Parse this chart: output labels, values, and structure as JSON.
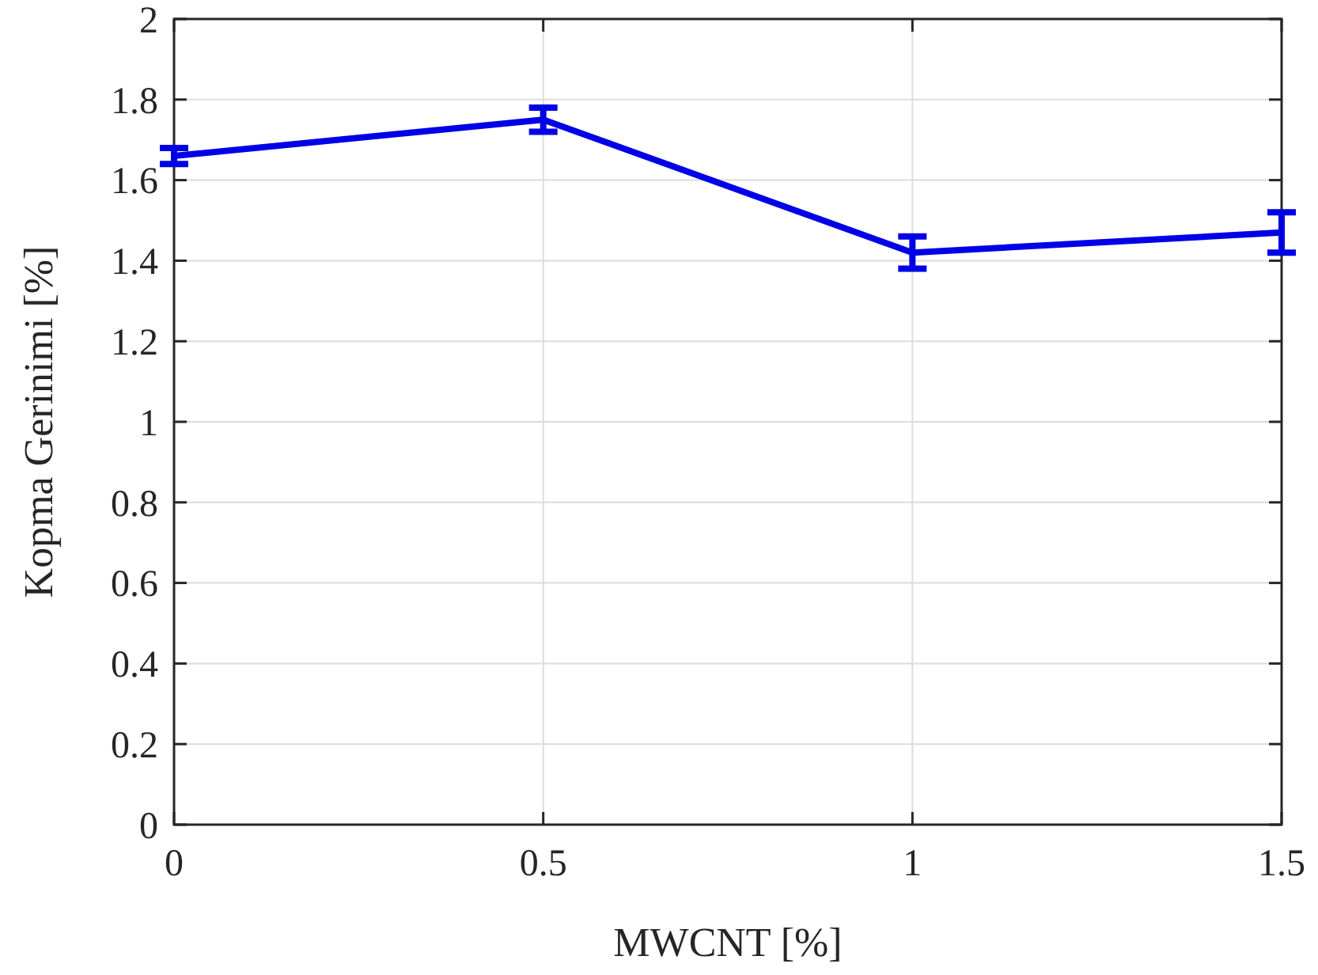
{
  "chart_data": {
    "type": "line",
    "xlabel": "MWCNT [%]",
    "ylabel": "Kopma Gerinimi [%]",
    "x": [
      0,
      0.5,
      1,
      1.5
    ],
    "series": [
      {
        "color": "#0000e6",
        "values": [
          1.66,
          1.75,
          1.42,
          1.47
        ],
        "errors": [
          0.02,
          0.03,
          0.04,
          0.05
        ]
      }
    ],
    "xlim": [
      0,
      1.5
    ],
    "xticks": [
      0,
      0.5,
      1,
      1.5
    ],
    "ylim": [
      0,
      2
    ],
    "yticks": [
      0,
      0.2,
      0.4,
      0.6,
      0.8,
      1,
      1.2,
      1.4,
      1.6,
      1.8,
      2
    ],
    "grid": true,
    "marker": "none",
    "line_style": "solid"
  }
}
